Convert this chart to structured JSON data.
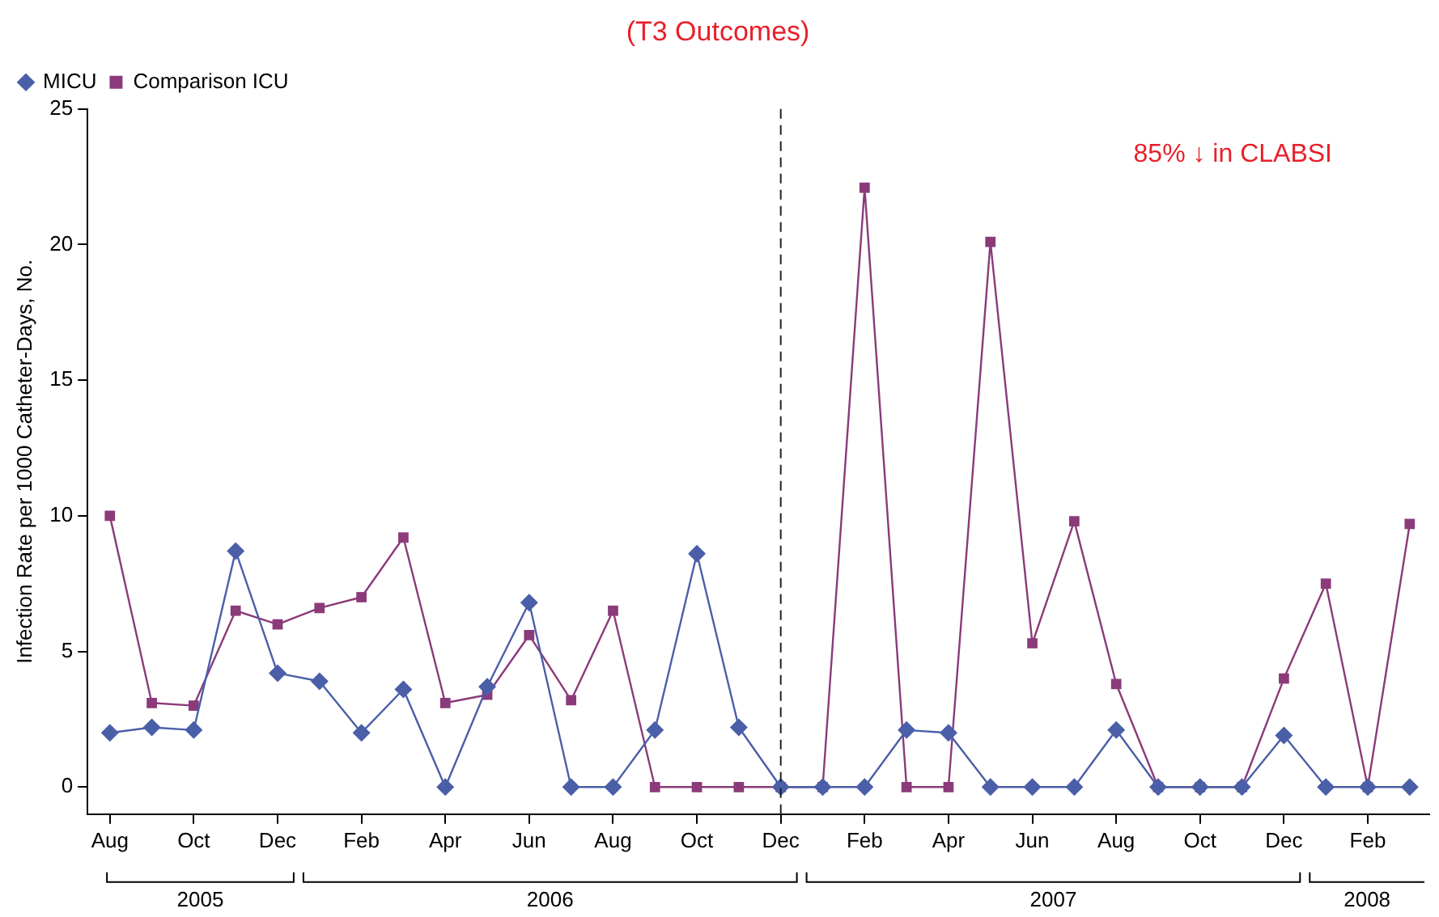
{
  "chart_data": {
    "type": "line",
    "title": "(T3 Outcomes)",
    "ylabel": "Infection Rate per 1000 Catheter-Days, No.",
    "x": [
      "2005-08",
      "2005-09",
      "2005-10",
      "2005-11",
      "2005-12",
      "2006-01",
      "2006-02",
      "2006-03",
      "2006-04",
      "2006-05",
      "2006-06",
      "2006-07",
      "2006-08",
      "2006-09",
      "2006-10",
      "2006-11",
      "2006-12",
      "2007-01",
      "2007-02",
      "2007-03",
      "2007-04",
      "2007-05",
      "2007-06",
      "2007-07",
      "2007-08",
      "2007-09",
      "2007-10",
      "2007-11",
      "2007-12",
      "2008-01",
      "2008-02",
      "2008-03"
    ],
    "series": [
      {
        "name": "MICU",
        "color": "#4a5fa8",
        "marker": "diamond",
        "values": [
          2.0,
          2.2,
          2.1,
          8.7,
          4.2,
          3.9,
          2.0,
          3.6,
          0,
          3.7,
          6.8,
          0,
          0,
          2.1,
          8.6,
          2.2,
          0,
          0,
          0,
          2.1,
          2.0,
          0,
          0,
          0,
          2.1,
          0,
          0,
          0,
          1.9,
          0,
          0,
          0
        ]
      },
      {
        "name": "Comparison ICU",
        "color": "#8b3a7a",
        "marker": "square",
        "values": [
          10.0,
          3.1,
          3.0,
          6.5,
          6.0,
          6.6,
          7.0,
          9.2,
          3.1,
          3.4,
          5.6,
          3.2,
          6.5,
          0,
          0,
          0,
          0,
          0,
          22.1,
          0,
          0,
          20.1,
          5.3,
          9.8,
          3.8,
          0,
          0,
          0,
          4.0,
          7.5,
          0,
          9.7
        ]
      }
    ],
    "xlim": [
      "2005-07-15",
      "2008-03-15"
    ],
    "xticks": [
      {
        "value": "2005-08",
        "label": "Aug"
      },
      {
        "value": "2005-10",
        "label": "Oct"
      },
      {
        "value": "2005-12",
        "label": "Dec"
      },
      {
        "value": "2006-02",
        "label": "Feb"
      },
      {
        "value": "2006-04",
        "label": "Apr"
      },
      {
        "value": "2006-06",
        "label": "Jun"
      },
      {
        "value": "2006-08",
        "label": "Aug"
      },
      {
        "value": "2006-10",
        "label": "Oct"
      },
      {
        "value": "2006-12",
        "label": "Dec"
      },
      {
        "value": "2007-02",
        "label": "Feb"
      },
      {
        "value": "2007-04",
        "label": "Apr"
      },
      {
        "value": "2007-06",
        "label": "Jun"
      },
      {
        "value": "2007-08",
        "label": "Aug"
      },
      {
        "value": "2007-10",
        "label": "Oct"
      },
      {
        "value": "2007-12",
        "label": "Dec"
      },
      {
        "value": "2008-02",
        "label": "Feb"
      }
    ],
    "ylim": [
      -1,
      25
    ],
    "yticks": [
      0,
      5,
      10,
      15,
      20,
      25
    ],
    "ref_lines": [
      {
        "axis": "x",
        "value": "2006-12",
        "color": "#222222",
        "line_style": "dashed"
      }
    ],
    "annotations": [
      "85% ↓ in CLABSI",
      "2005",
      "2006",
      "2007",
      "2008"
    ],
    "legend": "top left",
    "grid": false
  }
}
